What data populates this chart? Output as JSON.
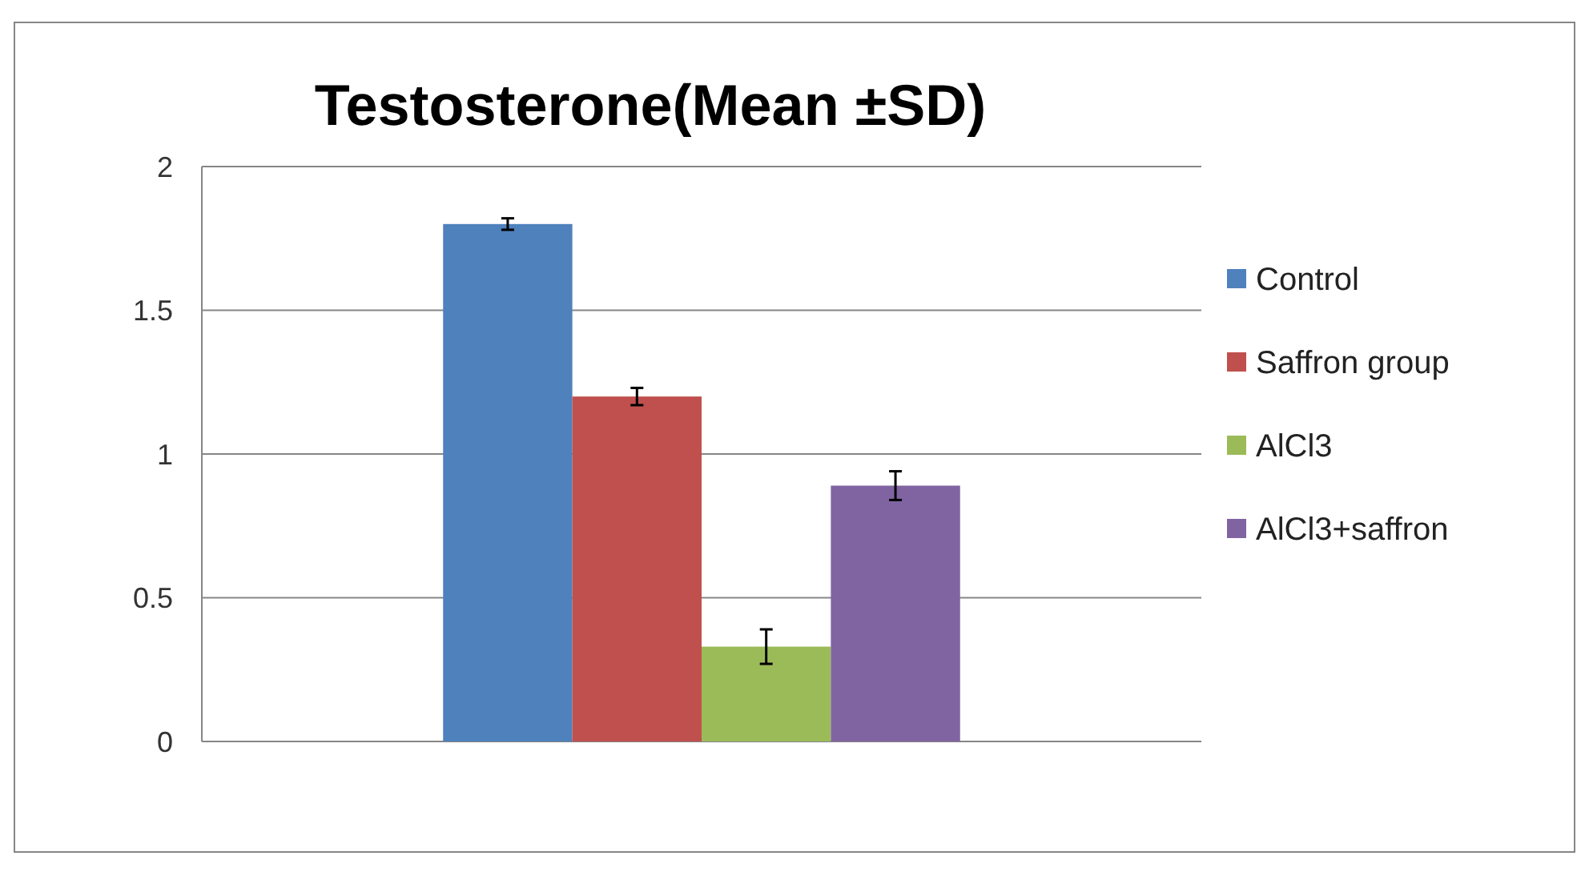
{
  "chart_data": {
    "type": "bar",
    "title": "Testosterone(Mean  ±SD)",
    "categories": [
      null
    ],
    "series": [
      {
        "name": "Control",
        "color": "#4f81bd",
        "values": [
          1.8
        ],
        "errors": [
          0.02
        ]
      },
      {
        "name": "Saffron group",
        "color": "#c0504d",
        "values": [
          1.2
        ],
        "errors": [
          0.03
        ]
      },
      {
        "name": "AlCl3",
        "color": "#9bbb59",
        "values": [
          0.33
        ],
        "errors": [
          0.06
        ]
      },
      {
        "name": "AlCl3+saffron",
        "color": "#8064a2",
        "values": [
          0.89
        ],
        "errors": [
          0.05
        ]
      }
    ],
    "ylim": [
      0,
      2
    ],
    "yticks": [
      0,
      0.5,
      1,
      1.5,
      2
    ],
    "grid": "y",
    "legend": "right"
  }
}
